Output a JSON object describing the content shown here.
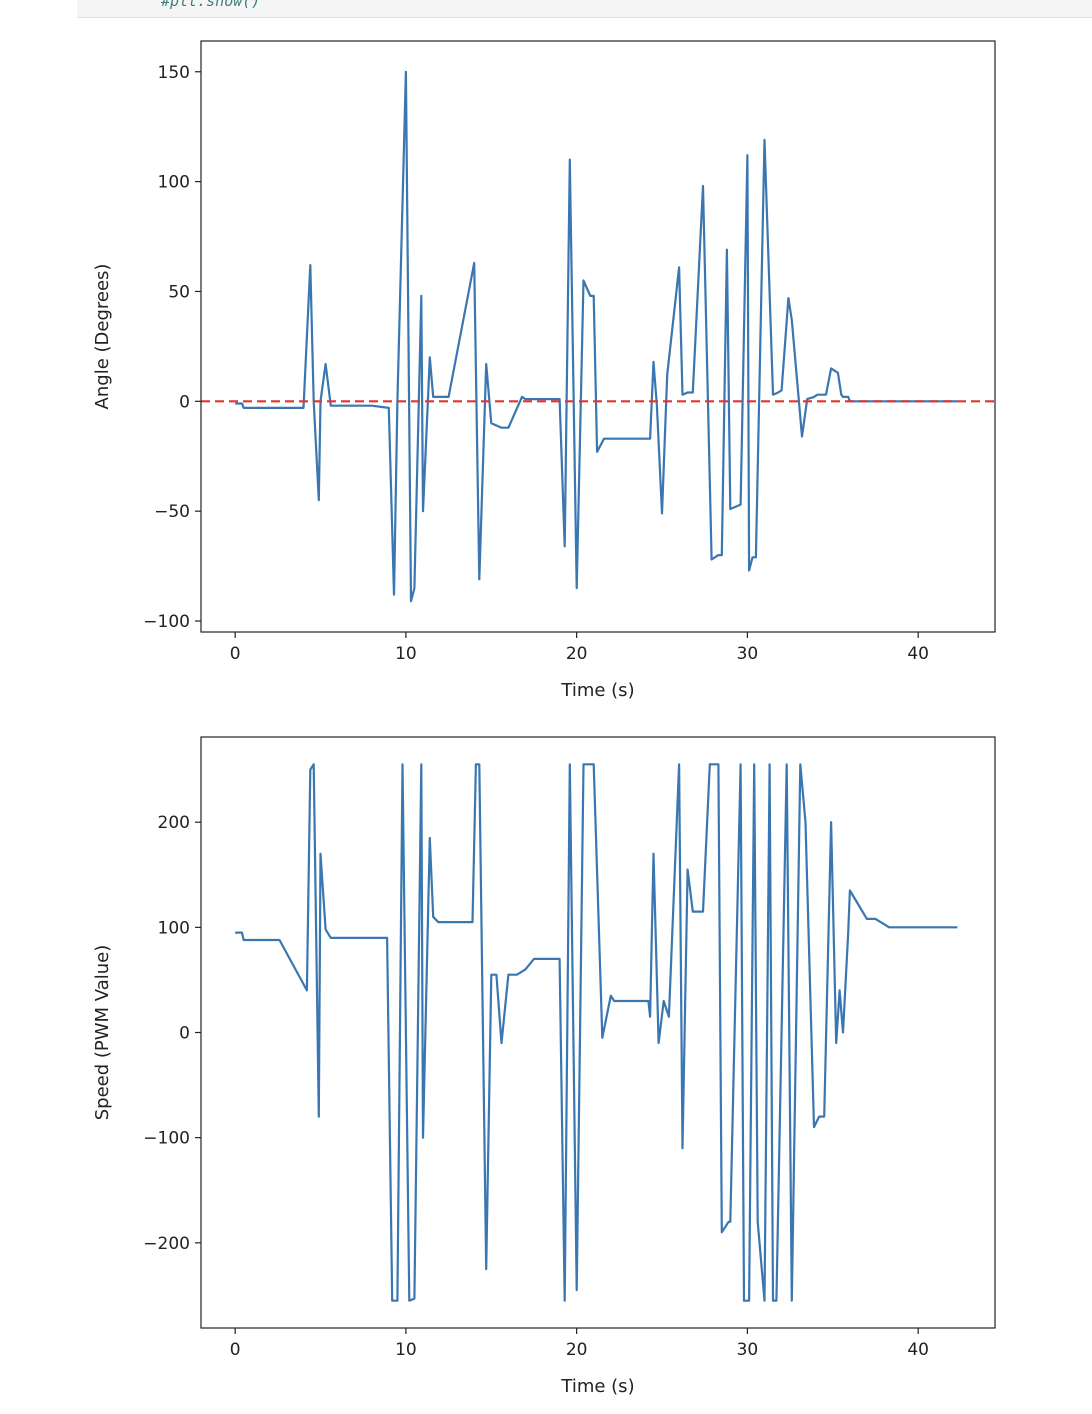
{
  "header": {
    "code_comment": "#plt.show()"
  },
  "chart_data": [
    {
      "type": "line",
      "title": "",
      "xlabel": "Time (s)",
      "ylabel": "Angle (Degrees)",
      "xlim": [
        -2,
        44.5
      ],
      "ylim": [
        -105,
        164
      ],
      "xticks": [
        0,
        10,
        20,
        30,
        40
      ],
      "yticks": [
        -100,
        -50,
        0,
        50,
        100,
        150
      ],
      "ytick_labels": [
        "−100",
        "−50",
        "0",
        "50",
        "100",
        "150"
      ],
      "grid": false,
      "series": [
        {
          "color": "#3a76b0",
          "x": [
            0,
            0.4,
            0.5,
            4,
            4.4,
            4.6,
            4.9,
            5.0,
            5.3,
            5.6,
            6.0,
            8,
            9.0,
            9.3,
            9.5,
            10.0,
            10.3,
            10.5,
            10.9,
            11.0,
            11.4,
            11.6,
            11.9,
            12.1,
            12.5,
            14.0,
            14.3,
            14.7,
            15.0,
            15.3,
            15.6,
            16.0,
            16.8,
            17.0,
            17.5,
            19.0,
            19.3,
            19.6,
            20.0,
            20.4,
            20.8,
            21.0,
            21.2,
            21.6,
            22.0,
            22.1,
            22.5,
            24.3,
            24.5,
            24.7,
            25.0,
            25.3,
            26.0,
            26.2,
            26.5,
            26.8,
            27.4,
            27.9,
            28.3,
            28.5,
            28.8,
            29.0,
            29.6,
            30.0,
            30.1,
            30.3,
            30.5,
            31.0,
            31.5,
            31.8,
            32.0,
            32.4,
            32.6,
            33.2,
            33.5,
            33.9,
            34.1,
            34.6,
            34.9,
            35.3,
            35.5,
            35.6,
            35.9,
            36.0,
            36.5,
            37.0,
            37.5,
            38.2,
            38.6,
            39.0,
            40.0,
            41.0,
            42.3
          ],
          "y": [
            -1,
            -1,
            -3,
            -3,
            62,
            0,
            -45,
            0,
            17,
            -2,
            -2,
            -2,
            -3,
            -88,
            0,
            150,
            -91,
            -85,
            48,
            -50,
            20,
            2,
            2,
            2,
            2,
            63,
            -81,
            17,
            -10,
            -11,
            -12,
            -12,
            2,
            1,
            1,
            1,
            -66,
            110,
            -85,
            55,
            48,
            48,
            -23,
            -17,
            -17,
            -17,
            -17,
            -17,
            18,
            -2,
            -51,
            12,
            61,
            3,
            4,
            4,
            98,
            -72,
            -70,
            -70,
            69,
            -49,
            -47,
            112,
            -77,
            -71,
            -71,
            119,
            3,
            4,
            5,
            47,
            37,
            -16,
            1,
            2,
            3,
            3,
            15,
            13,
            3,
            2,
            2,
            0,
            0,
            0,
            0,
            0,
            0,
            0,
            0,
            0,
            0
          ]
        }
      ],
      "reference_line": {
        "y": 0,
        "color": "#e3342f",
        "style": "dashed"
      }
    },
    {
      "type": "line",
      "title": "",
      "xlabel": "Time (s)",
      "ylabel": "Speed (PWM Value)",
      "xlim": [
        -2,
        44.5
      ],
      "ylim": [
        -281,
        281
      ],
      "xticks": [
        0,
        10,
        20,
        30,
        40
      ],
      "yticks": [
        -200,
        -100,
        0,
        100,
        200
      ],
      "ytick_labels": [
        "−200",
        "−100",
        "0",
        "100",
        "200"
      ],
      "grid": false,
      "series": [
        {
          "color": "#3a76b0",
          "x": [
            0,
            0.4,
            0.5,
            2.6,
            4.2,
            4.4,
            4.6,
            4.9,
            5.0,
            5.3,
            5.6,
            6.0,
            8.9,
            9.2,
            9.5,
            9.8,
            10.2,
            10.5,
            10.9,
            11.0,
            11.4,
            11.6,
            11.9,
            12.1,
            13.9,
            14.1,
            14.3,
            14.7,
            15.0,
            15.3,
            15.6,
            16.0,
            16.5,
            17.0,
            17.5,
            19.0,
            19.3,
            19.6,
            20.0,
            20.4,
            20.8,
            21.0,
            21.5,
            22.0,
            22.2,
            22.5,
            24.2,
            24.3,
            24.5,
            24.8,
            25.1,
            25.4,
            26.0,
            26.2,
            26.5,
            26.8,
            27.4,
            27.8,
            28.3,
            28.5,
            28.9,
            29.0,
            29.6,
            29.8,
            30.0,
            30.1,
            30.4,
            30.6,
            31.0,
            31.3,
            31.5,
            31.7,
            32.3,
            32.6,
            33.1,
            33.4,
            33.9,
            34.2,
            34.5,
            34.9,
            35.2,
            35.4,
            35.6,
            35.9,
            36.0,
            37.0,
            37.5,
            38.3,
            38.7,
            39.0,
            40.0,
            41.0,
            42.3
          ],
          "y": [
            95,
            95,
            88,
            88,
            40,
            250,
            255,
            -80,
            170,
            98,
            90,
            90,
            90,
            -255,
            -255,
            255,
            -255,
            -253,
            255,
            -100,
            185,
            110,
            105,
            105,
            105,
            255,
            255,
            -225,
            55,
            55,
            -10,
            55,
            55,
            60,
            70,
            70,
            -255,
            255,
            -245,
            255,
            255,
            255,
            -5,
            35,
            30,
            30,
            30,
            15,
            170,
            -10,
            30,
            15,
            255,
            -110,
            155,
            115,
            115,
            255,
            255,
            -190,
            -180,
            -180,
            255,
            -255,
            -255,
            -255,
            255,
            -180,
            -255,
            255,
            -255,
            -255,
            255,
            -255,
            255,
            200,
            -90,
            -80,
            -80,
            200,
            -10,
            40,
            0,
            95,
            135,
            108,
            108,
            100,
            100,
            100,
            100,
            100,
            100
          ]
        }
      ]
    }
  ]
}
